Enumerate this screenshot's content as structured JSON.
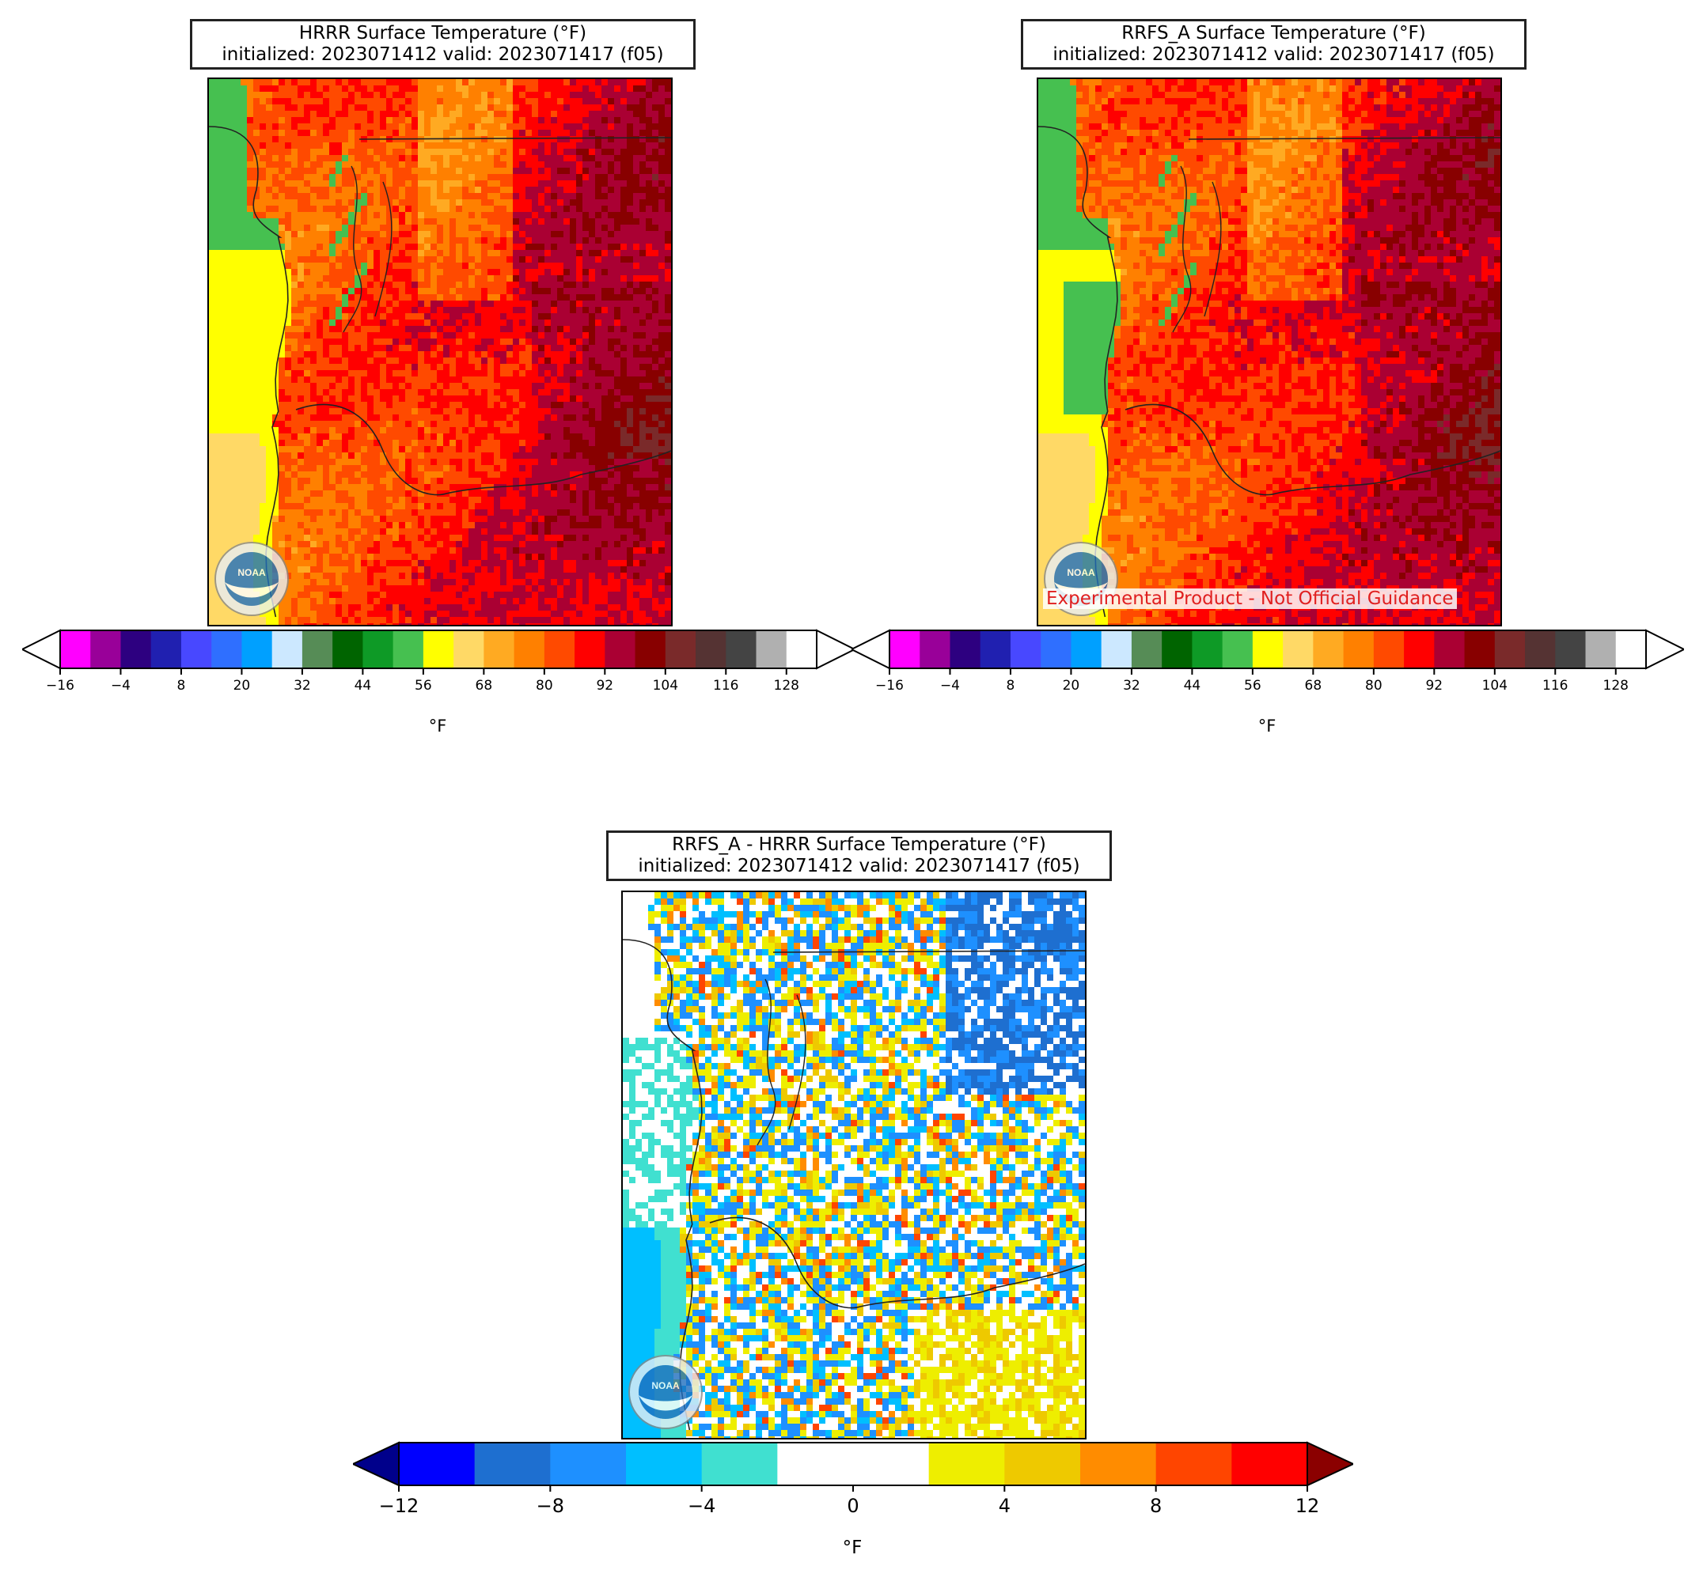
{
  "panels": [
    {
      "id": "hrrr",
      "title_line1": "HRRR Surface Temperature (°F)",
      "title_line2": "initialized: 2023071412 valid: 2023071417 (f05)"
    },
    {
      "id": "rrfs",
      "title_line1": "RRFS_A Surface Temperature (°F)",
      "title_line2": "initialized: 2023071412 valid: 2023071417 (f05)",
      "disclaimer": "Experimental Product - Not Official Guidance"
    },
    {
      "id": "diff",
      "title_line1": "RRFS_A - HRRR Surface Temperature (°F)",
      "title_line2": "initialized: 2023071412 valid: 2023071417 (f05)"
    }
  ],
  "temp_colorbar": {
    "unit": "°F",
    "ticks": [
      "−16",
      "−4",
      "8",
      "20",
      "32",
      "44",
      "56",
      "68",
      "80",
      "92",
      "104",
      "116",
      "128"
    ],
    "colors": [
      "#ff00ff",
      "#990099",
      "#2d0080",
      "#2020b0",
      "#4848ff",
      "#2f6fff",
      "#00a0ff",
      "#cce8ff",
      "#568c56",
      "#006400",
      "#0e9a26",
      "#46c050",
      "#ffff00",
      "#ffd966",
      "#ffaa22",
      "#ff8000",
      "#ff4a00",
      "#ff0000",
      "#aa0033",
      "#880000",
      "#7a2a2a",
      "#553333",
      "#444444",
      "#b0b0b0",
      "#ffffff"
    ]
  },
  "diff_colorbar": {
    "unit": "°F",
    "ticks": [
      "−12",
      "−8",
      "−4",
      "0",
      "4",
      "8",
      "12"
    ],
    "under_color": "#00008b",
    "over_color": "#8b0000",
    "colors": [
      "#0000ff",
      "#1e6fd0",
      "#1e90ff",
      "#00bfff",
      "#40e0d0",
      "#ffffff",
      "#ffffff",
      "#eeee00",
      "#eec900",
      "#ff8c00",
      "#ff4500",
      "#ff0000"
    ]
  },
  "logo_text": "NOAA"
}
